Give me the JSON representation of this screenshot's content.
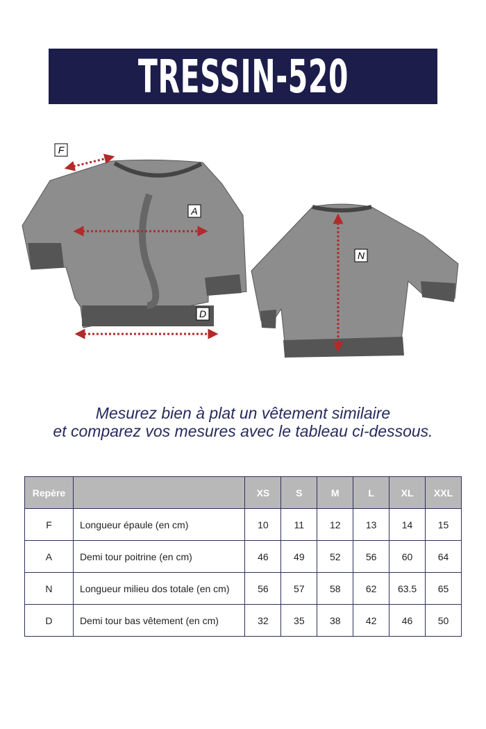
{
  "title": "TRESSIN-520",
  "diagram_labels": {
    "F": "F",
    "A": "A",
    "D": "D",
    "N": "N"
  },
  "colors": {
    "banner": "#1c1d4a",
    "arrow": "#b22a2a",
    "header_bg": "#b8b8b8"
  },
  "instructions": [
    "Mesurez bien à plat un vêtement similaire",
    "et comparez vos mesures avec le tableau ci-dessous."
  ],
  "table": {
    "headers": [
      "Repère",
      "",
      "XS",
      "S",
      "M",
      "L",
      "XL",
      "XXL"
    ],
    "rows": [
      {
        "mark": "F",
        "label": "Longueur épaule (en cm)",
        "values": [
          "10",
          "11",
          "12",
          "13",
          "14",
          "15"
        ]
      },
      {
        "mark": "A",
        "label": "Demi tour poitrine (en cm)",
        "values": [
          "46",
          "49",
          "52",
          "56",
          "60",
          "64"
        ]
      },
      {
        "mark": "N",
        "label": "Longueur milieu dos totale (en cm)",
        "values": [
          "56",
          "57",
          "58",
          "62",
          "63.5",
          "65"
        ]
      },
      {
        "mark": "D",
        "label": "Demi tour bas vêtement (en cm)",
        "values": [
          "32",
          "35",
          "38",
          "42",
          "46",
          "50"
        ]
      }
    ]
  }
}
